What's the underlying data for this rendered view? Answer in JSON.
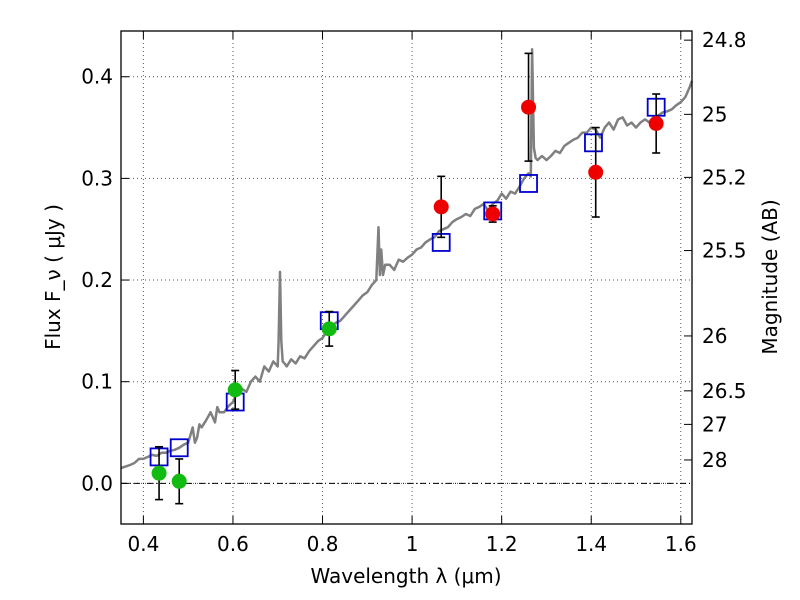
{
  "chart_data": {
    "type": "scatter",
    "title": "",
    "xlabel": "Wavelength  λ (μm)",
    "ylabel": "Flux  F_ν  ( μJy )",
    "ylabel_right": "Magnitude (AB)",
    "xlim": [
      0.35,
      1.625
    ],
    "ylim": [
      -0.04,
      0.445
    ],
    "grid": true,
    "x_ticks": [
      0.4,
      0.6,
      0.8,
      1.0,
      1.2,
      1.4,
      1.6
    ],
    "x_tick_labels": [
      "0.4",
      "0.6",
      "0.8",
      "1",
      "1.2",
      "1.4",
      "1.6"
    ],
    "y_ticks": [
      0.0,
      0.1,
      0.2,
      0.3,
      0.4
    ],
    "y_tick_labels": [
      "0.0",
      "0.1",
      "0.2",
      "0.3",
      "0.4"
    ],
    "right_ticks": [
      {
        "label": "24.8",
        "flux": 0.436
      },
      {
        "label": "25",
        "flux": 0.363
      },
      {
        "label": "25.2",
        "flux": 0.301
      },
      {
        "label": "25.5",
        "flux": 0.229
      },
      {
        "label": "26",
        "flux": 0.145
      },
      {
        "label": "26.5",
        "flux": 0.091
      },
      {
        "label": "27",
        "flux": 0.058
      },
      {
        "label": "28",
        "flux": 0.023
      }
    ],
    "series": [
      {
        "name": "template spectrum",
        "kind": "line",
        "color": "#808080",
        "x": [
          0.35,
          0.37,
          0.38,
          0.39,
          0.4,
          0.41,
          0.42,
          0.43,
          0.44,
          0.45,
          0.46,
          0.47,
          0.48,
          0.49,
          0.5,
          0.51,
          0.515,
          0.52,
          0.525,
          0.53,
          0.54,
          0.55,
          0.56,
          0.565,
          0.57,
          0.58,
          0.59,
          0.6,
          0.61,
          0.62,
          0.63,
          0.64,
          0.65,
          0.66,
          0.67,
          0.68,
          0.69,
          0.7,
          0.702,
          0.705,
          0.708,
          0.711,
          0.715,
          0.72,
          0.73,
          0.74,
          0.75,
          0.76,
          0.77,
          0.78,
          0.79,
          0.8,
          0.81,
          0.82,
          0.83,
          0.84,
          0.85,
          0.86,
          0.87,
          0.88,
          0.89,
          0.9,
          0.91,
          0.92,
          0.925,
          0.928,
          0.931,
          0.935,
          0.94,
          0.95,
          0.96,
          0.97,
          0.98,
          0.99,
          1.0,
          1.01,
          1.02,
          1.03,
          1.04,
          1.05,
          1.06,
          1.07,
          1.08,
          1.09,
          1.1,
          1.11,
          1.12,
          1.13,
          1.14,
          1.15,
          1.16,
          1.17,
          1.18,
          1.19,
          1.2,
          1.21,
          1.22,
          1.23,
          1.24,
          1.25,
          1.26,
          1.265,
          1.268,
          1.272,
          1.276,
          1.28,
          1.29,
          1.3,
          1.31,
          1.32,
          1.33,
          1.34,
          1.35,
          1.36,
          1.37,
          1.38,
          1.39,
          1.4,
          1.41,
          1.42,
          1.43,
          1.44,
          1.45,
          1.46,
          1.47,
          1.48,
          1.49,
          1.5,
          1.51,
          1.52,
          1.53,
          1.54,
          1.55,
          1.56,
          1.57,
          1.58,
          1.59,
          1.6,
          1.61,
          1.62,
          1.625
        ],
        "y": [
          0.015,
          0.018,
          0.02,
          0.024,
          0.024,
          0.026,
          0.028,
          0.027,
          0.03,
          0.03,
          0.032,
          0.033,
          0.035,
          0.038,
          0.04,
          0.055,
          0.04,
          0.045,
          0.058,
          0.055,
          0.062,
          0.07,
          0.06,
          0.075,
          0.07,
          0.07,
          0.076,
          0.08,
          0.09,
          0.093,
          0.09,
          0.1,
          0.105,
          0.1,
          0.115,
          0.11,
          0.12,
          0.115,
          0.14,
          0.208,
          0.14,
          0.12,
          0.118,
          0.115,
          0.122,
          0.118,
          0.125,
          0.123,
          0.13,
          0.135,
          0.14,
          0.143,
          0.15,
          0.155,
          0.158,
          0.16,
          0.165,
          0.17,
          0.175,
          0.18,
          0.185,
          0.188,
          0.195,
          0.2,
          0.252,
          0.205,
          0.23,
          0.205,
          0.215,
          0.215,
          0.21,
          0.22,
          0.218,
          0.222,
          0.225,
          0.23,
          0.232,
          0.237,
          0.24,
          0.242,
          0.248,
          0.25,
          0.252,
          0.257,
          0.26,
          0.262,
          0.265,
          0.263,
          0.27,
          0.272,
          0.275,
          0.268,
          0.275,
          0.278,
          0.285,
          0.28,
          0.287,
          0.285,
          0.292,
          0.3,
          0.305,
          0.302,
          0.427,
          0.33,
          0.32,
          0.318,
          0.322,
          0.318,
          0.322,
          0.327,
          0.325,
          0.332,
          0.335,
          0.338,
          0.34,
          0.345,
          0.345,
          0.35,
          0.348,
          0.34,
          0.35,
          0.355,
          0.348,
          0.358,
          0.36,
          0.352,
          0.355,
          0.35,
          0.355,
          0.358,
          0.355,
          0.36,
          0.362,
          0.365,
          0.366,
          0.368,
          0.372,
          0.375,
          0.38,
          0.39,
          0.396
        ]
      },
      {
        "name": "model photometry",
        "kind": "open-square",
        "color": "#0000cc",
        "x": [
          0.435,
          0.48,
          0.605,
          0.815,
          1.065,
          1.18,
          1.26,
          1.405,
          1.545
        ],
        "y": [
          0.026,
          0.035,
          0.08,
          0.16,
          0.237,
          0.268,
          0.295,
          0.335,
          0.37
        ]
      },
      {
        "name": "observed photometry (optical)",
        "kind": "filled-circle",
        "color": "#11bb11",
        "x": [
          0.435,
          0.48,
          0.605,
          0.815
        ],
        "y": [
          0.01,
          0.002,
          0.092,
          0.152
        ],
        "yerr_low": [
          0.026,
          0.022,
          0.019,
          0.017
        ],
        "yerr_high": [
          0.026,
          0.022,
          0.019,
          0.017
        ]
      },
      {
        "name": "observed photometry (near-IR)",
        "kind": "filled-circle",
        "color": "#ee0000",
        "x": [
          1.065,
          1.18,
          1.26,
          1.41,
          1.545
        ],
        "y": [
          0.272,
          0.265,
          0.37,
          0.306,
          0.354
        ],
        "yerr_low": [
          0.03,
          0.008,
          0.053,
          0.044,
          0.029
        ],
        "yerr_high": [
          0.03,
          0.008,
          0.053,
          0.044,
          0.029
        ]
      }
    ]
  }
}
